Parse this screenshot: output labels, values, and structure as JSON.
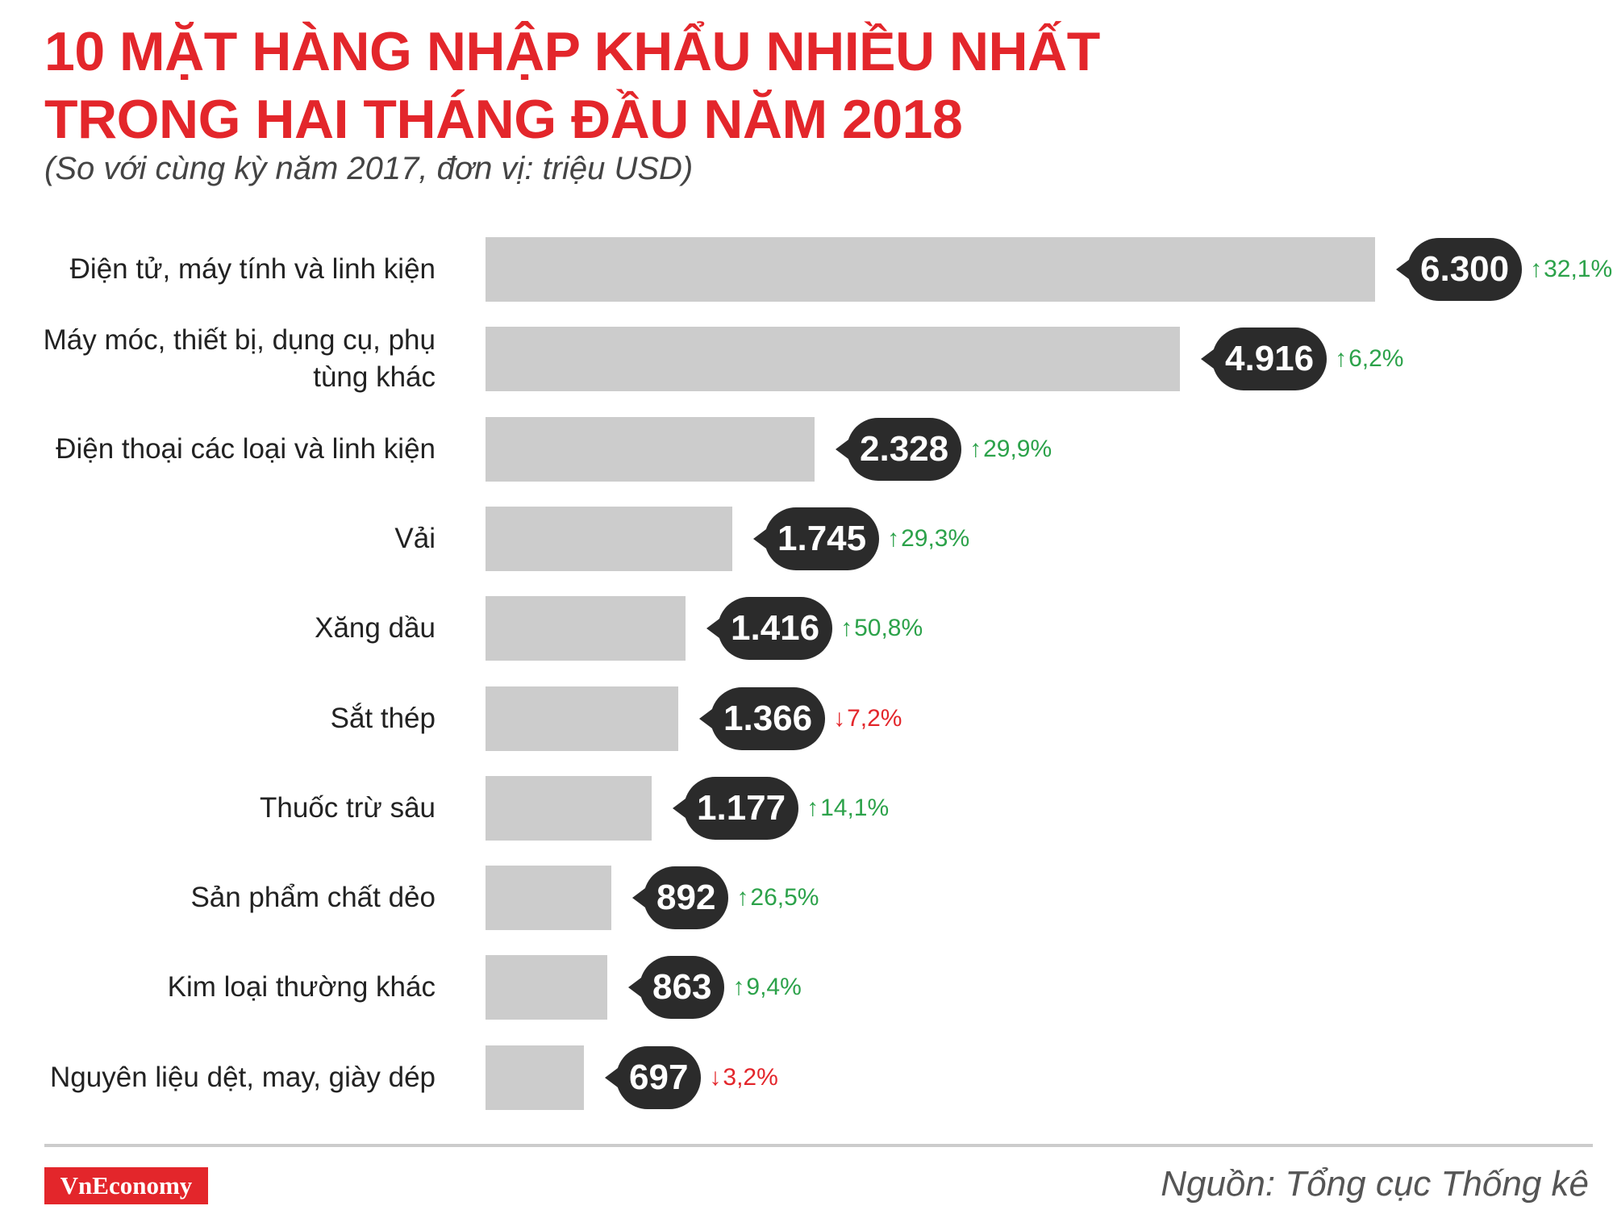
{
  "header": {
    "title_line1": "10 MẶT HÀNG NHẬP KHẨU NHIỀU NHẤT",
    "title_line2": "TRONG HAI THÁNG ĐẦU NĂM 2018",
    "subtitle": "(So với cùng kỳ năm 2017, đơn vị: triệu USD)"
  },
  "colors": {
    "accent": "#e3262b",
    "bar": "#cccccc",
    "bubble": "#2b2b2b",
    "up": "#2ca24a",
    "down": "#e3262b"
  },
  "chart_data": {
    "type": "bar",
    "orientation": "horizontal",
    "title": "10 MẶT HÀNG NHẬP KHẨU NHIỀU NHẤT TRONG HAI THÁNG ĐẦU NĂM 2018",
    "subtitle": "(So với cùng kỳ năm 2017, đơn vị: triệu USD)",
    "xlim": [
      0,
      6300
    ],
    "grid": false,
    "items": [
      {
        "category": [
          "Điện tử, máy tính và linh kiện"
        ],
        "value": 6300,
        "value_label": "6.300",
        "change": "32,1%",
        "direction": "up"
      },
      {
        "category": [
          "Máy móc, thiết bị, dụng cụ, phụ",
          "tùng khác"
        ],
        "value": 4916,
        "value_label": "4.916",
        "change": "6,2%",
        "direction": "up"
      },
      {
        "category": [
          "Điện thoại các loại và linh kiện"
        ],
        "value": 2328,
        "value_label": "2.328",
        "change": "29,9%",
        "direction": "up"
      },
      {
        "category": [
          "Vải"
        ],
        "value": 1745,
        "value_label": "1.745",
        "change": "29,3%",
        "direction": "up"
      },
      {
        "category": [
          "Xăng dầu"
        ],
        "value": 1416,
        "value_label": "1.416",
        "change": "50,8%",
        "direction": "up"
      },
      {
        "category": [
          "Sắt thép"
        ],
        "value": 1366,
        "value_label": "1.366",
        "change": "7,2%",
        "direction": "down"
      },
      {
        "category": [
          "Thuốc trừ sâu"
        ],
        "value": 1177,
        "value_label": "1.177",
        "change": "14,1%",
        "direction": "up"
      },
      {
        "category": [
          "Sản phẩm chất dẻo"
        ],
        "value": 892,
        "value_label": "892",
        "change": "26,5%",
        "direction": "up"
      },
      {
        "category": [
          "Kim loại thường khác"
        ],
        "value": 863,
        "value_label": "863",
        "change": "9,4%",
        "direction": "up"
      },
      {
        "category": [
          "Nguyên liệu dệt, may, giày dép"
        ],
        "value": 697,
        "value_label": "697",
        "change": "3,2%",
        "direction": "down"
      }
    ]
  },
  "footer": {
    "logo": "VnEconomy",
    "source": "Nguồn: Tổng cục Thống kê"
  }
}
